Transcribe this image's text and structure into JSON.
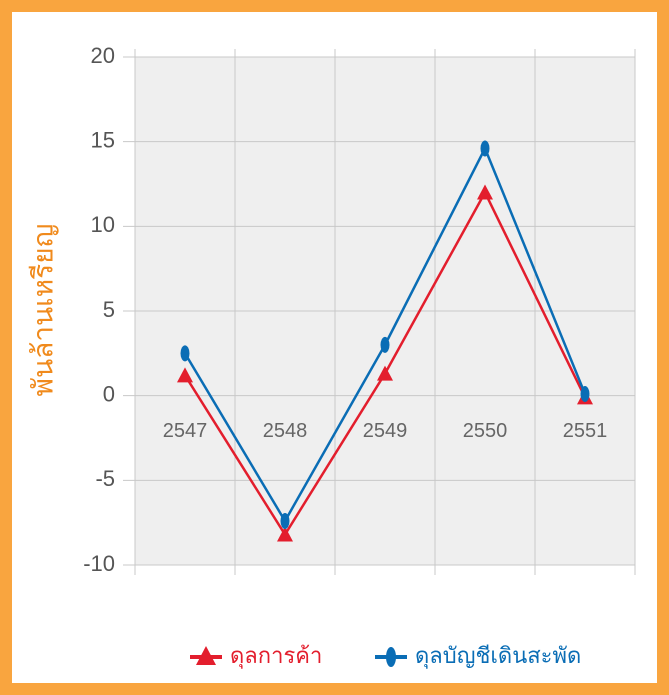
{
  "chart_data": {
    "type": "line",
    "y_label": "พันล้านเหรียญ",
    "categories": [
      "2547",
      "2548",
      "2549",
      "2550",
      "2551"
    ],
    "series": [
      {
        "name": "ดุลการค้า",
        "color": "#e31e2d",
        "values": [
          1.2,
          -8.2,
          1.3,
          12.0,
          -0.1
        ]
      },
      {
        "name": "ดุลบัญชีเดินสะพัด",
        "color": "#0a6db5",
        "values": [
          2.5,
          -7.4,
          3.0,
          14.6,
          0.1
        ]
      }
    ],
    "ylim": [
      -10,
      20
    ],
    "yticks": [
      -10,
      -5,
      0,
      5,
      10,
      15,
      20
    ],
    "grid": true,
    "legend": "bottom"
  }
}
